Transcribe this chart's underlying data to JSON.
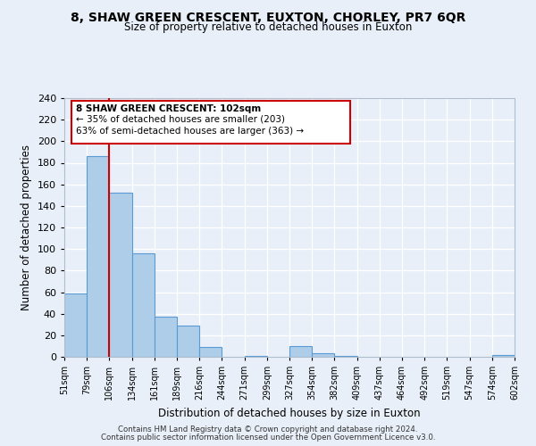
{
  "title": "8, SHAW GREEN CRESCENT, EUXTON, CHORLEY, PR7 6QR",
  "subtitle": "Size of property relative to detached houses in Euxton",
  "xlabel": "Distribution of detached houses by size in Euxton",
  "ylabel": "Number of detached properties",
  "bar_values": [
    59,
    186,
    152,
    96,
    37,
    29,
    9,
    0,
    1,
    0,
    10,
    3,
    1,
    0,
    0,
    0,
    0,
    0,
    0,
    2
  ],
  "bin_labels": [
    "51sqm",
    "79sqm",
    "106sqm",
    "134sqm",
    "161sqm",
    "189sqm",
    "216sqm",
    "244sqm",
    "271sqm",
    "299sqm",
    "327sqm",
    "354sqm",
    "382sqm",
    "409sqm",
    "437sqm",
    "464sqm",
    "492sqm",
    "519sqm",
    "547sqm",
    "574sqm",
    "602sqm"
  ],
  "bar_color": "#aecde8",
  "bar_edge_color": "#5b9bd5",
  "vline_color": "#cc0000",
  "ylim": [
    0,
    240
  ],
  "yticks": [
    0,
    20,
    40,
    60,
    80,
    100,
    120,
    140,
    160,
    180,
    200,
    220,
    240
  ],
  "annotation_title": "8 SHAW GREEN CRESCENT: 102sqm",
  "annotation_line1": "← 35% of detached houses are smaller (203)",
  "annotation_line2": "63% of semi-detached houses are larger (363) →",
  "annotation_box_color": "#ffffff",
  "annotation_box_edge": "#cc0000",
  "footer_line1": "Contains HM Land Registry data © Crown copyright and database right 2024.",
  "footer_line2": "Contains public sector information licensed under the Open Government Licence v3.0.",
  "background_color": "#e8eff8",
  "grid_color": "#ffffff"
}
